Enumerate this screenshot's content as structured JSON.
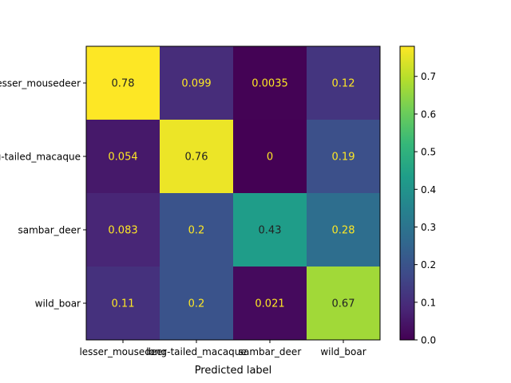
{
  "chart_data": {
    "type": "heatmap",
    "title": "",
    "xlabel": "Predicted label",
    "ylabel": "",
    "x_categories": [
      "lesser_mousedeer",
      "long-tailed_macaque",
      "sambar_deer",
      "wild_boar"
    ],
    "y_categories": [
      "lesser_mousedeer",
      "long-tailed_macaque",
      "sambar_deer",
      "wild_boar"
    ],
    "values": [
      [
        0.78,
        0.099,
        0.0035,
        0.12
      ],
      [
        0.054,
        0.76,
        0,
        0.19
      ],
      [
        0.083,
        0.2,
        0.43,
        0.28
      ],
      [
        0.11,
        0.2,
        0.021,
        0.67
      ]
    ],
    "labels": [
      [
        "0.78",
        "0.099",
        "0.0035",
        "0.12"
      ],
      [
        "0.054",
        "0.76",
        "0",
        "0.19"
      ],
      [
        "0.083",
        "0.2",
        "0.43",
        "0.28"
      ],
      [
        "0.11",
        "0.2",
        "0.021",
        "0.67"
      ]
    ],
    "colormap": "viridis",
    "vmin": 0.0,
    "vmax": 0.78,
    "colorbar_ticks": [
      "0.0",
      "0.1",
      "0.2",
      "0.3",
      "0.4",
      "0.5",
      "0.6",
      "0.7"
    ],
    "colorbar_tick_values": [
      0.0,
      0.1,
      0.2,
      0.3,
      0.4,
      0.5,
      0.6,
      0.7
    ],
    "annotation_colors": {
      "dark_cell": "#fde725",
      "light_cell": "#222222"
    },
    "grid": false
  }
}
